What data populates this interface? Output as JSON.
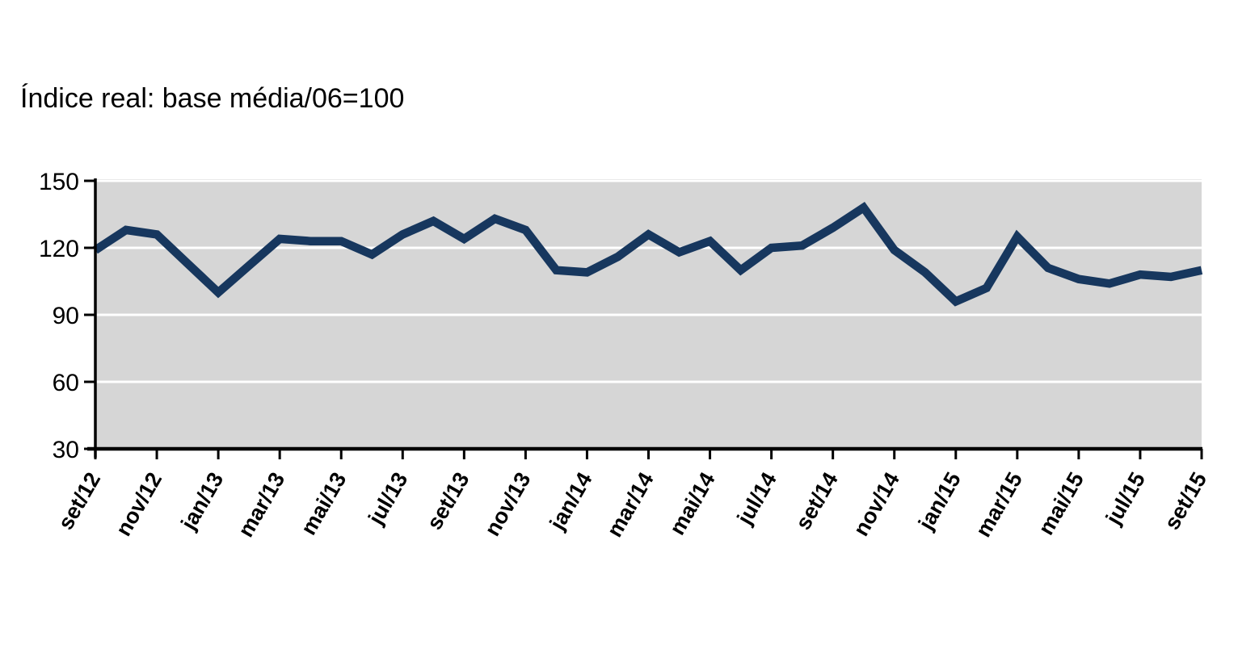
{
  "title": "Índice real: base média/06=100",
  "colors": {
    "line": "#17375E",
    "plot_background": "#D6D6D6",
    "gridline": "#FFFFFF",
    "axis": "#000000",
    "text": "#000000"
  },
  "chart_data": {
    "type": "line",
    "title": "Índice real: base média/06=100",
    "x": [
      "set/12",
      "out/12",
      "nov/12",
      "dez/12",
      "jan/13",
      "fev/13",
      "mar/13",
      "abr/13",
      "mai/13",
      "jun/13",
      "jul/13",
      "ago/13",
      "set/13",
      "out/13",
      "nov/13",
      "dez/13",
      "jan/14",
      "fev/14",
      "mar/14",
      "abr/14",
      "mai/14",
      "jun/14",
      "jul/14",
      "ago/14",
      "set/14",
      "out/14",
      "nov/14",
      "dez/14",
      "jan/15",
      "fev/15",
      "mar/15",
      "abr/15",
      "mai/15",
      "jun/15",
      "jul/15",
      "ago/15",
      "set/15"
    ],
    "values": [
      119,
      128,
      126,
      113,
      100,
      112,
      124,
      123,
      123,
      117,
      126,
      132,
      124,
      133,
      128,
      110,
      109,
      116,
      126,
      118,
      123,
      110,
      120,
      121,
      129,
      138,
      119,
      109,
      96,
      102,
      125,
      111,
      106,
      104,
      108,
      107,
      110
    ],
    "x_tick_labels": [
      "set/12",
      "nov/12",
      "jan/13",
      "mar/13",
      "mai/13",
      "jul/13",
      "set/13",
      "nov/13",
      "jan/14",
      "mar/14",
      "mai/14",
      "jul/14",
      "set/14",
      "nov/14",
      "jan/15",
      "mar/15",
      "mai/15",
      "jul/15",
      "set/15"
    ],
    "x_tick_every": 2,
    "y_ticks": [
      30,
      60,
      90,
      120,
      150
    ],
    "ylim": [
      30,
      150
    ],
    "xlabel": "",
    "ylabel": "",
    "grid": "horizontal-white",
    "legend": "none",
    "series_name": "Índice real"
  }
}
